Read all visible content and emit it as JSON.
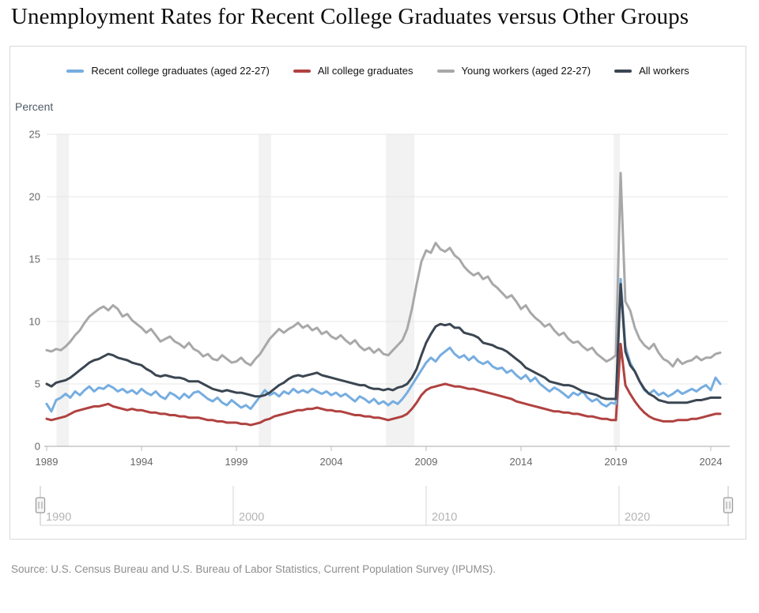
{
  "header": {
    "title": "Unemployment Rates for Recent College Graduates versus Other Groups"
  },
  "footer": {
    "source": "Source: U.S. Census Bureau and U.S. Bureau of Labor Statistics, Current Population Survey (IPUMS)."
  },
  "icons": {
    "navigator_handle": "grip-lines-vertical"
  },
  "legend": [
    {
      "label": "Recent college graduates (aged 22-27)",
      "color": "#76ade0"
    },
    {
      "label": "All college graduates",
      "color": "#b04240"
    },
    {
      "label": "Young workers (aged 22-27)",
      "color": "#a8a8a8"
    },
    {
      "label": "All workers",
      "color": "#3b4652"
    }
  ],
  "chart_data": {
    "type": "line",
    "title": "Unemployment Rates for Recent College Graduates versus Other Groups",
    "xlabel": "",
    "ylabel": "Percent",
    "ylim": [
      0,
      25
    ],
    "xlim": [
      1989,
      2024.6
    ],
    "grid": true,
    "legend_position": "top",
    "y_ticks": [
      0,
      5,
      10,
      15,
      20,
      25
    ],
    "x_ticks": [
      1989,
      1994,
      1999,
      2004,
      2009,
      2014,
      2019,
      2024
    ],
    "band_color": "#e8e8e8",
    "recession_bands": [
      [
        1989.52,
        1990.17
      ],
      [
        2000.17,
        2000.83
      ],
      [
        2006.88,
        2008.38
      ],
      [
        2018.88,
        2019.21
      ]
    ],
    "navigator": {
      "labels": [
        "1990",
        "2000",
        "2010",
        "2020"
      ],
      "positions": [
        1990,
        2000,
        2010,
        2020
      ],
      "range_start": 1990,
      "range_end": 2025.6
    },
    "x_start": 1989,
    "x_step": 0.25,
    "series": [
      {
        "name": "Recent college graduates (aged 22-27)",
        "color": "#76ade0",
        "values": [
          3.4,
          2.8,
          3.7,
          3.9,
          4.2,
          3.9,
          4.4,
          4.1,
          4.5,
          4.8,
          4.4,
          4.7,
          4.6,
          4.9,
          4.7,
          4.4,
          4.6,
          4.3,
          4.5,
          4.2,
          4.6,
          4.3,
          4.1,
          4.4,
          4.0,
          3.8,
          4.3,
          4.1,
          3.8,
          4.2,
          3.9,
          4.3,
          4.4,
          4.1,
          3.8,
          3.6,
          3.9,
          3.5,
          3.3,
          3.7,
          3.4,
          3.1,
          3.3,
          3.0,
          3.5,
          4.0,
          4.5,
          4.1,
          4.3,
          4.0,
          4.4,
          4.2,
          4.6,
          4.3,
          4.5,
          4.3,
          4.6,
          4.4,
          4.2,
          4.4,
          4.1,
          4.3,
          4.0,
          4.2,
          3.9,
          3.6,
          4.0,
          3.8,
          3.5,
          3.8,
          3.4,
          3.6,
          3.3,
          3.6,
          3.4,
          3.8,
          4.3,
          4.9,
          5.5,
          6.1,
          6.7,
          7.1,
          6.8,
          7.3,
          7.6,
          7.9,
          7.4,
          7.1,
          7.3,
          6.9,
          7.2,
          6.8,
          6.6,
          6.8,
          6.4,
          6.2,
          6.3,
          5.9,
          6.1,
          5.7,
          5.4,
          5.7,
          5.2,
          5.5,
          5.0,
          4.7,
          4.4,
          4.7,
          4.5,
          4.2,
          3.9,
          4.3,
          4.1,
          4.4,
          3.9,
          3.6,
          3.8,
          3.4,
          3.2,
          3.5,
          3.4,
          13.4,
          8.0,
          6.7,
          6.0,
          5.2,
          4.5,
          4.2,
          4.5,
          4.1,
          4.3,
          4.0,
          4.2,
          4.5,
          4.2,
          4.4,
          4.6,
          4.4,
          4.7,
          4.9,
          4.5,
          5.5,
          5.0
        ]
      },
      {
        "name": "All college graduates",
        "color": "#b04240",
        "values": [
          2.2,
          2.1,
          2.2,
          2.3,
          2.4,
          2.6,
          2.8,
          2.9,
          3.0,
          3.1,
          3.2,
          3.2,
          3.3,
          3.4,
          3.2,
          3.1,
          3.0,
          2.9,
          3.0,
          2.9,
          2.9,
          2.8,
          2.7,
          2.7,
          2.6,
          2.6,
          2.5,
          2.5,
          2.4,
          2.4,
          2.3,
          2.3,
          2.3,
          2.2,
          2.1,
          2.1,
          2.0,
          2.0,
          1.9,
          1.9,
          1.9,
          1.8,
          1.8,
          1.7,
          1.8,
          1.9,
          2.1,
          2.2,
          2.4,
          2.5,
          2.6,
          2.7,
          2.8,
          2.9,
          2.9,
          3.0,
          3.0,
          3.1,
          3.0,
          2.9,
          2.9,
          2.8,
          2.8,
          2.7,
          2.6,
          2.5,
          2.5,
          2.4,
          2.4,
          2.3,
          2.3,
          2.2,
          2.1,
          2.2,
          2.3,
          2.4,
          2.6,
          3.0,
          3.5,
          4.1,
          4.5,
          4.7,
          4.8,
          4.9,
          5.0,
          4.9,
          4.8,
          4.8,
          4.7,
          4.6,
          4.6,
          4.5,
          4.4,
          4.3,
          4.2,
          4.1,
          4.0,
          3.9,
          3.8,
          3.6,
          3.5,
          3.4,
          3.3,
          3.2,
          3.1,
          3.0,
          2.9,
          2.8,
          2.8,
          2.7,
          2.7,
          2.6,
          2.6,
          2.5,
          2.4,
          2.4,
          2.3,
          2.2,
          2.2,
          2.1,
          2.1,
          8.2,
          4.9,
          4.2,
          3.6,
          3.1,
          2.7,
          2.4,
          2.2,
          2.1,
          2.0,
          2.0,
          2.0,
          2.1,
          2.1,
          2.1,
          2.2,
          2.2,
          2.3,
          2.4,
          2.5,
          2.6,
          2.6
        ]
      },
      {
        "name": "Young workers (aged 22-27)",
        "color": "#a8a8a8",
        "values": [
          7.7,
          7.6,
          7.8,
          7.7,
          8.0,
          8.4,
          8.9,
          9.3,
          9.9,
          10.4,
          10.7,
          11.0,
          11.2,
          10.9,
          11.3,
          11.0,
          10.4,
          10.6,
          10.1,
          9.8,
          9.5,
          9.1,
          9.4,
          8.9,
          8.4,
          8.6,
          8.8,
          8.4,
          8.2,
          7.9,
          8.3,
          7.8,
          7.6,
          7.2,
          7.4,
          7.0,
          6.9,
          7.3,
          7.0,
          6.7,
          6.8,
          7.1,
          6.7,
          6.5,
          7.0,
          7.4,
          8.0,
          8.6,
          9.0,
          9.4,
          9.1,
          9.4,
          9.6,
          9.9,
          9.5,
          9.7,
          9.3,
          9.5,
          9.0,
          9.2,
          8.8,
          8.6,
          8.9,
          8.5,
          8.2,
          8.5,
          8.0,
          7.7,
          7.9,
          7.5,
          7.8,
          7.4,
          7.3,
          7.7,
          8.1,
          8.5,
          9.4,
          11.0,
          13.0,
          14.8,
          15.7,
          15.5,
          16.3,
          15.8,
          15.6,
          15.9,
          15.3,
          15.0,
          14.4,
          14.0,
          13.7,
          13.9,
          13.4,
          13.6,
          13.0,
          12.7,
          12.3,
          11.9,
          12.1,
          11.6,
          11.0,
          11.3,
          10.7,
          10.3,
          10.0,
          9.6,
          9.8,
          9.3,
          8.9,
          9.1,
          8.6,
          8.3,
          8.4,
          8.0,
          7.7,
          7.9,
          7.4,
          7.1,
          6.8,
          7.0,
          7.3,
          21.9,
          11.6,
          10.9,
          9.5,
          8.6,
          8.1,
          7.8,
          8.2,
          7.5,
          7.0,
          6.8,
          6.4,
          7.0,
          6.6,
          6.8,
          6.9,
          7.2,
          6.9,
          7.1,
          7.1,
          7.4,
          7.5
        ]
      },
      {
        "name": "All workers",
        "color": "#3b4652",
        "values": [
          5.0,
          4.8,
          5.1,
          5.2,
          5.3,
          5.5,
          5.8,
          6.1,
          6.4,
          6.7,
          6.9,
          7.0,
          7.2,
          7.4,
          7.3,
          7.1,
          7.0,
          6.9,
          6.7,
          6.6,
          6.5,
          6.2,
          6.0,
          5.7,
          5.6,
          5.7,
          5.6,
          5.5,
          5.5,
          5.4,
          5.2,
          5.2,
          5.2,
          5.0,
          4.8,
          4.6,
          4.5,
          4.4,
          4.5,
          4.4,
          4.3,
          4.3,
          4.2,
          4.1,
          4.0,
          4.0,
          4.1,
          4.3,
          4.6,
          4.9,
          5.1,
          5.4,
          5.6,
          5.7,
          5.6,
          5.7,
          5.8,
          5.9,
          5.7,
          5.6,
          5.5,
          5.4,
          5.3,
          5.2,
          5.1,
          5.0,
          4.9,
          4.9,
          4.7,
          4.6,
          4.6,
          4.5,
          4.6,
          4.5,
          4.7,
          4.8,
          5.0,
          5.5,
          6.2,
          7.3,
          8.3,
          9.0,
          9.6,
          9.8,
          9.7,
          9.8,
          9.5,
          9.5,
          9.1,
          9.0,
          8.9,
          8.7,
          8.3,
          8.2,
          8.1,
          7.9,
          7.8,
          7.6,
          7.3,
          7.0,
          6.7,
          6.3,
          6.1,
          5.9,
          5.7,
          5.5,
          5.2,
          5.1,
          5.0,
          4.9,
          4.9,
          4.8,
          4.6,
          4.4,
          4.3,
          4.2,
          4.1,
          3.9,
          3.8,
          3.8,
          3.8,
          13.0,
          7.6,
          6.5,
          6.0,
          5.2,
          4.6,
          4.2,
          4.0,
          3.7,
          3.6,
          3.5,
          3.5,
          3.5,
          3.5,
          3.5,
          3.6,
          3.7,
          3.7,
          3.8,
          3.9,
          3.9,
          3.9
        ]
      }
    ]
  }
}
